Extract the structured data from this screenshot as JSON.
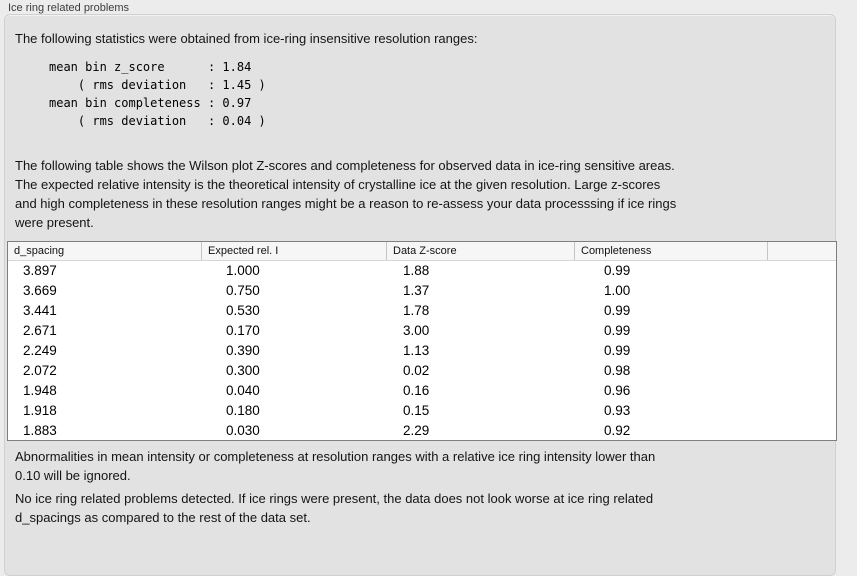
{
  "panel": {
    "title": "Ice ring related problems"
  },
  "intro_text": "The following statistics were obtained from ice-ring insensitive resolution ranges:",
  "stats_block": "mean bin z_score      : 1.84\n    ( rms deviation   : 1.45 )\nmean bin completeness : 0.97\n    ( rms deviation   : 0.04 )",
  "stats": {
    "mean_bin_z_score": "1.84",
    "z_score_rms_deviation": "1.45",
    "mean_bin_completeness": "0.97",
    "completeness_rms_deviation": "0.04"
  },
  "description_text": "The following table shows the Wilson plot Z-scores and completeness for observed data in ice-ring sensitive areas.\nThe expected relative intensity is the theoretical intensity of crystalline ice at the given resolution. Large z-scores\nand high completeness in these resolution ranges might be a reason to re-assess your data processsing if ice rings\nwere present.",
  "table": {
    "columns": [
      "d_spacing",
      "Expected rel. I",
      "Data Z-score",
      "Completeness",
      ""
    ],
    "rows": [
      [
        "3.897",
        "1.000",
        "1.88",
        "0.99",
        ""
      ],
      [
        "3.669",
        "0.750",
        "1.37",
        "1.00",
        ""
      ],
      [
        "3.441",
        "0.530",
        "1.78",
        "0.99",
        ""
      ],
      [
        "2.671",
        "0.170",
        "3.00",
        "0.99",
        ""
      ],
      [
        "2.249",
        "0.390",
        "1.13",
        "0.99",
        ""
      ],
      [
        "2.072",
        "0.300",
        "0.02",
        "0.98",
        ""
      ],
      [
        "1.948",
        "0.040",
        "0.16",
        "0.96",
        ""
      ],
      [
        "1.918",
        "0.180",
        "0.15",
        "0.93",
        ""
      ],
      [
        "1.883",
        "0.030",
        "2.29",
        "0.92",
        ""
      ]
    ]
  },
  "note_ignore_text": "Abnormalities in mean intensity or completeness at resolution ranges with a relative ice ring intensity lower than\n0.10 will be ignored.",
  "conclusion_text": "No ice ring related problems detected. If ice rings were present, the data does not look worse at ice ring related\nd_spacings as compared to the rest of the data set.",
  "colors": {
    "window_background": "#ececec",
    "groupbox_background": "#e2e2e2",
    "table_border": "#7f7f7f",
    "header_background": "#f6f6f6"
  }
}
